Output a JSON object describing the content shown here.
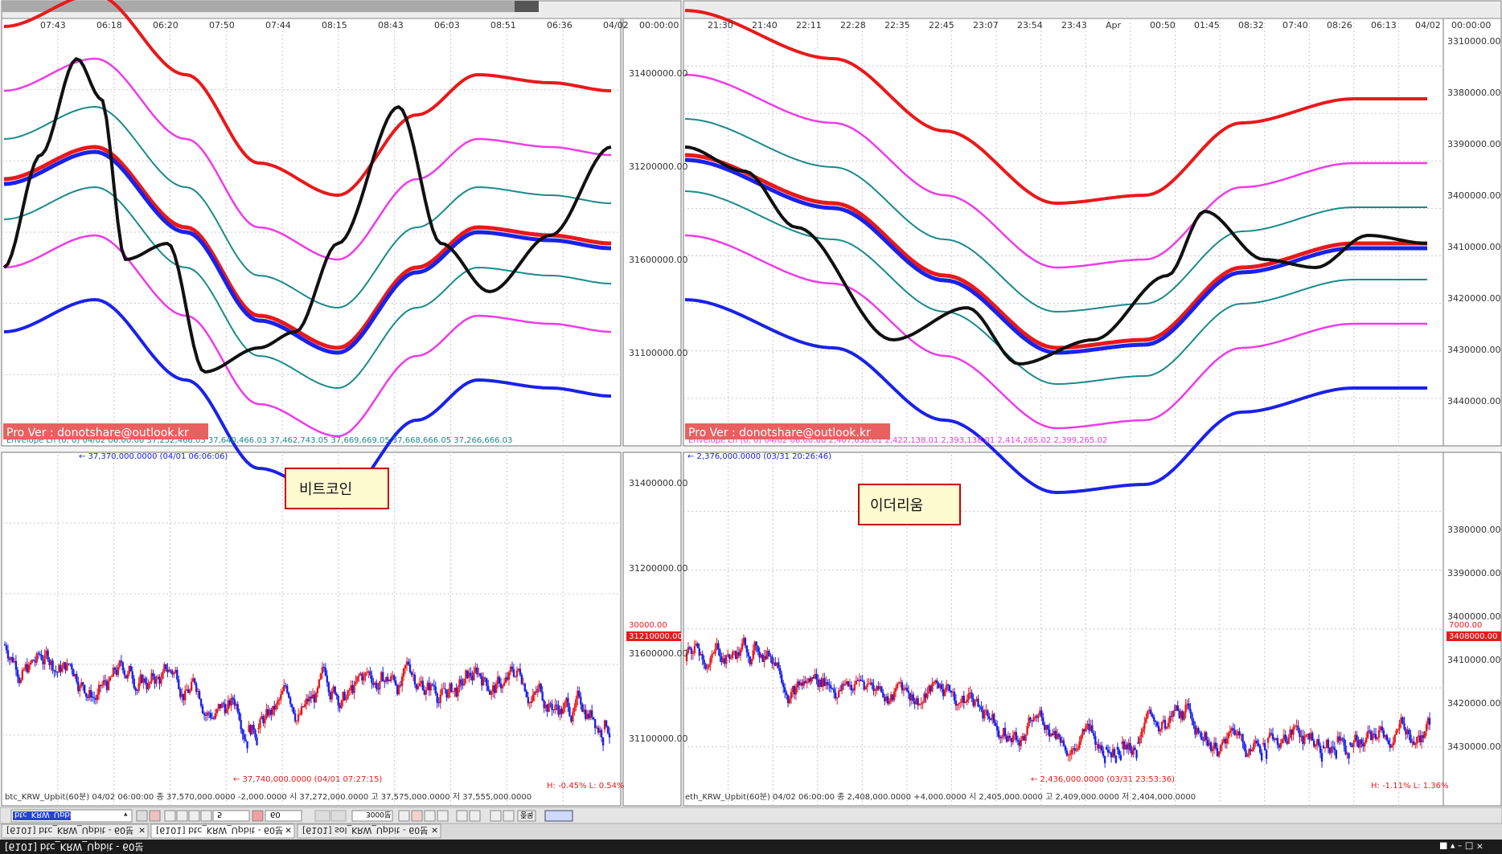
{
  "window": {
    "title": "[6101] btc_KRW_Upbit - 60분"
  },
  "tabs": [
    {
      "label": "[6101] btc_KRW_Upbit - 60분"
    },
    {
      "label": "[6101] btc_KRW_Upbit - 60분"
    },
    {
      "label": "[6101] sol_KRW_Upbit - 60분"
    }
  ],
  "toolbar": {
    "symbol": "btc_KRW_Upbit",
    "period": "5",
    "count1": "60",
    "count2": "3000",
    "unit": "분",
    "list": "종목"
  },
  "left_chart": {
    "time_labels": [
      "04/02",
      "06:36",
      "08:51",
      "06:03",
      "08:43",
      "08:15",
      "07:44",
      "07:50",
      "06:20",
      "06:18",
      "07:43"
    ],
    "price_axis_labels": [
      "31100000.00",
      "31600000.00",
      "31200000.00",
      "31400000.00"
    ],
    "axis_label_top": "00:00:00",
    "legend_text": "Envelope Ln (0, 0) 04/02 06:00:00 37,252,466.03 37,640,466.03 37,462,743.05 37,669,669.05 37,668,666.05 37,266,666.03",
    "pro_banner": "Pro Ver : donotshare@outlook.kr",
    "lower_axis_labels": [
      "31100000.00",
      "31600000.00",
      "31200000.00",
      "31400000.00"
    ],
    "current_price_tag": "31210000.00",
    "current_change_tag": "30000.00",
    "max_note": "← 37,370,000.0000 (04/01 06:06:06)",
    "min_note": "← 37,740,000.0000 (04/01 07:27:15)",
    "info_line": "btc_KRW_Upbit(60분) 04/02 06:00:00  종 37,570,000.0000  -2,000.0000   시 37,272,000.0000  고 37,575,000.0000  저 37,555,000.0000",
    "hl_text": "H: -0.45%  L: 0.54%",
    "popup_label": "비트코인"
  },
  "right_chart": {
    "time_labels": [
      "04/02",
      "06:13",
      "08:26",
      "07:40",
      "08:32",
      "01:45",
      "00:50",
      "Apr",
      "23:43",
      "23:54",
      "23:07",
      "22:45",
      "22:35",
      "22:28",
      "22:11",
      "21:40",
      "21:30"
    ],
    "price_axis_labels": [
      "3440000.00",
      "3430000.00",
      "3420000.00",
      "3410000.00",
      "3400000.00",
      "3390000.00",
      "3380000.00",
      "3310000.00"
    ],
    "axis_label_top": "00:00:00",
    "legend_text": "Envelope Ln (0, 0) 04/02 06:00:00 2,407,638.01 2,422,138.01 2,393,138.01 2,414,265.02 2,399,265.02",
    "pro_banner": "Pro Ver : donotshare@outlook.kr",
    "lower_axis_labels": [
      "3430000.00",
      "3420000.00",
      "3410000.00",
      "3400000.00",
      "3390000.00",
      "3380000.00"
    ],
    "current_price_tag": "3408000.00",
    "current_change_tag": "7000.00",
    "max_note": "← 2,376,000.0000 (03/31 20:26:46)",
    "min_note": "← 2,436,000.0000 (03/31 23:53:36)",
    "info_line": "eth_KRW_Upbit(60분) 04/02 06:00:00  종 2,408,000.0000  +4,000.0000   시 2,405,000.0000  고 2,409,000.0000  저 2,404,000.0000",
    "hl_text": "H: -1.11%  L: 1.36%",
    "popup_label": "이더리움"
  },
  "taskbar": {
    "right": "■ ▾  –  □  ×"
  },
  "colors": {
    "red": "#e8191b",
    "blue": "#1a22e8",
    "magenta": "#ee3be9",
    "teal": "#1a8a8a",
    "green": "#1f7f1f",
    "black": "#111111",
    "banner": "#e86060"
  }
}
